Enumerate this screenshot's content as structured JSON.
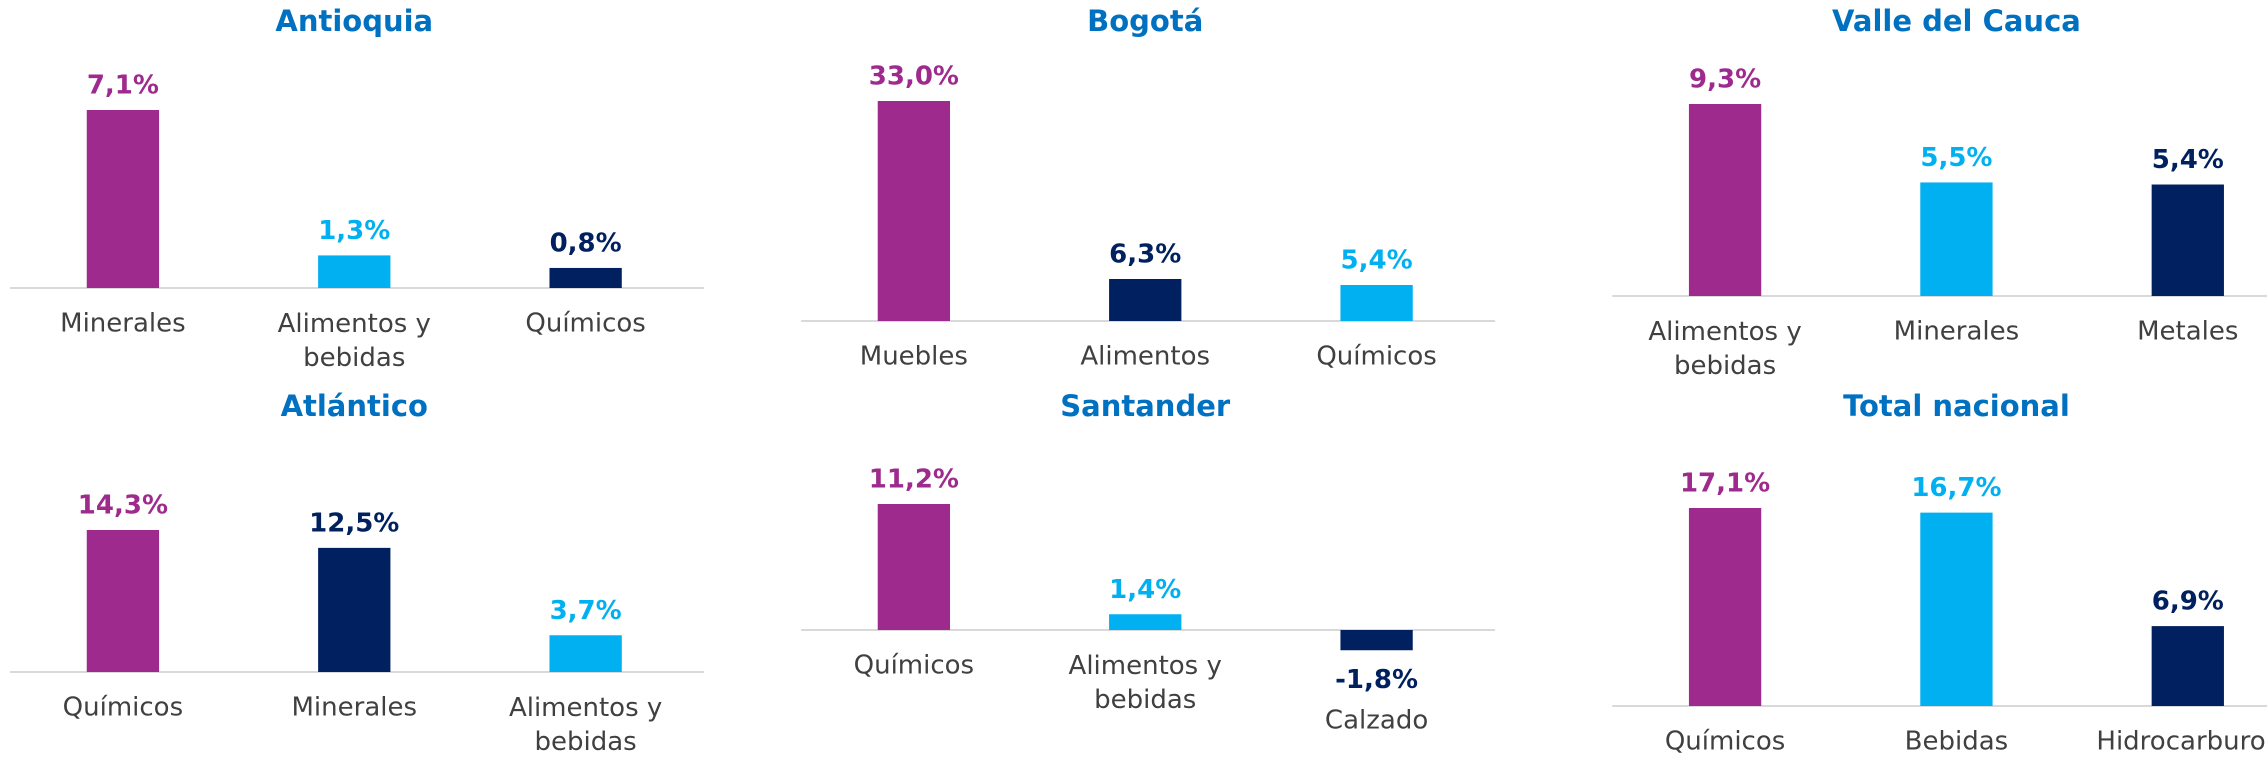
{
  "chart_data": [
    {
      "type": "bar",
      "title": "Antioquia",
      "categories": [
        "Minerales",
        "Alimentos y bebidas",
        "Químicos"
      ],
      "values": [
        7.1,
        1.3,
        0.8
      ],
      "value_labels": [
        "7,1%",
        "1,3%",
        "0,8%"
      ],
      "colors": [
        "#9e2a8e",
        "#00b0f0",
        "#002060"
      ]
    },
    {
      "type": "bar",
      "title": "Bogotá",
      "categories": [
        "Muebles",
        "Alimentos",
        "Químicos"
      ],
      "values": [
        33.0,
        6.3,
        5.4
      ],
      "value_labels": [
        "33,0%",
        "6,3%",
        "5,4%"
      ],
      "colors": [
        "#9e2a8e",
        "#002060",
        "#00b0f0"
      ]
    },
    {
      "type": "bar",
      "title": "Valle del Cauca",
      "categories": [
        "Alimentos y bebidas",
        "Minerales",
        "Metales"
      ],
      "values": [
        9.3,
        5.5,
        5.4
      ],
      "value_labels": [
        "9,3%",
        "5,5%",
        "5,4%"
      ],
      "colors": [
        "#9e2a8e",
        "#00b0f0",
        "#002060"
      ]
    },
    {
      "type": "bar",
      "title": "Atlántico",
      "categories": [
        "Químicos",
        "Minerales",
        "Alimentos y bebidas"
      ],
      "values": [
        14.3,
        12.5,
        3.7
      ],
      "value_labels": [
        "14,3%",
        "12,5%",
        "3,7%"
      ],
      "colors": [
        "#9e2a8e",
        "#002060",
        "#00b0f0"
      ]
    },
    {
      "type": "bar",
      "title": "Santander",
      "categories": [
        "Químicos",
        "Alimentos y bebidas",
        "Calzado"
      ],
      "values": [
        11.2,
        1.4,
        -1.8
      ],
      "value_labels": [
        "11,2%",
        "1,4%",
        "-1,8%"
      ],
      "colors": [
        "#9e2a8e",
        "#00b0f0",
        "#002060"
      ]
    },
    {
      "type": "bar",
      "title": "Total nacional",
      "categories": [
        "Químicos",
        "Bebidas",
        "Hidrocarburos"
      ],
      "values": [
        17.1,
        16.7,
        6.9
      ],
      "value_labels": [
        "17,1%",
        "16,7%",
        "6,9%"
      ],
      "colors": [
        "#9e2a8e",
        "#00b0f0",
        "#002060"
      ]
    }
  ]
}
